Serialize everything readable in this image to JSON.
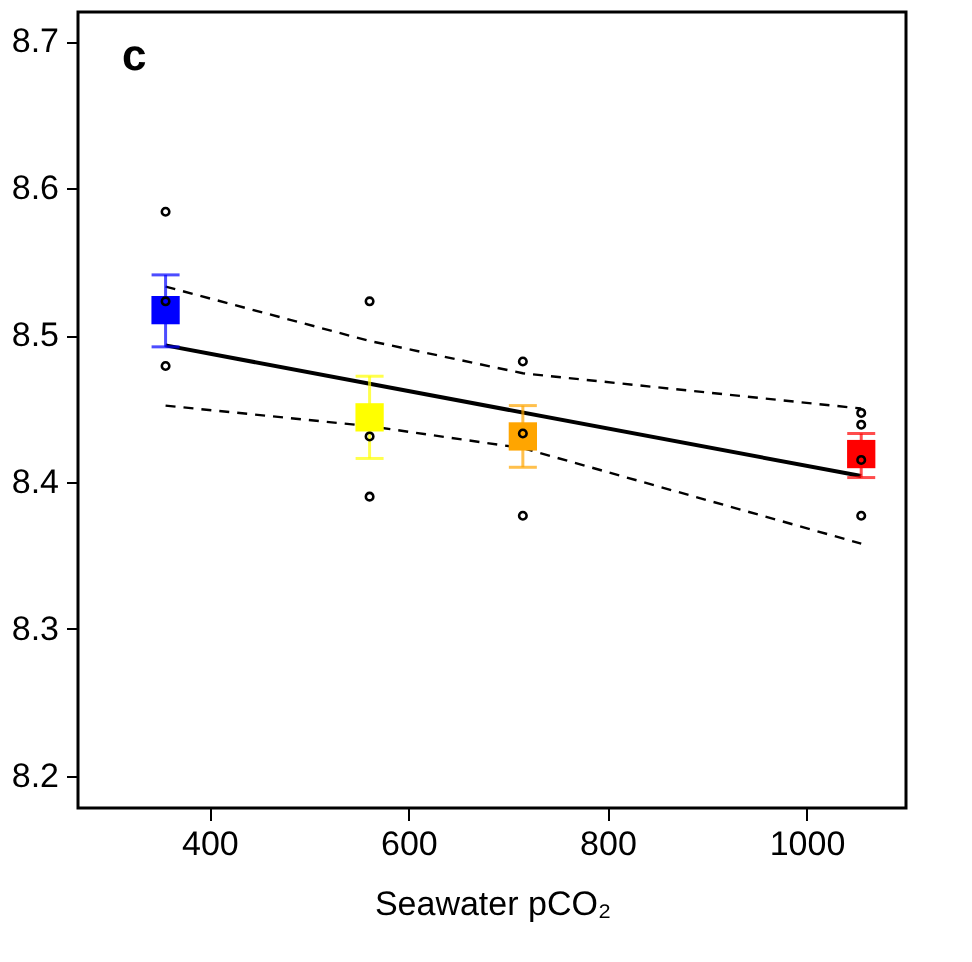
{
  "chart_data": {
    "type": "scatter",
    "xlabel": "Seawater pCO₂",
    "annotations": [
      "c"
    ],
    "xlim": [
      268,
      1100
    ],
    "ylim": [
      8.178,
      8.72
    ],
    "xticks": [
      400,
      600,
      800,
      1000
    ],
    "yticks": [
      8.2,
      8.3,
      8.4,
      8.5,
      8.6,
      8.7
    ],
    "grid": false,
    "series": [
      {
        "type": "line",
        "line_style": "dashed",
        "color": "#000000",
        "x": [
          356,
          561,
          715,
          1055
        ],
        "values": [
          8.533,
          8.496,
          8.474,
          8.45
        ]
      },
      {
        "type": "line",
        "line_style": "dashed",
        "color": "#000000",
        "x": [
          356,
          561,
          715,
          1055
        ],
        "values": [
          8.452,
          8.438,
          8.423,
          8.358
        ]
      },
      {
        "type": "line",
        "line_style": "solid",
        "color": "#000000",
        "x": [
          356,
          1055
        ],
        "values": [
          8.493,
          8.404
        ]
      },
      {
        "marker": "square",
        "x": [
          356,
          561,
          715,
          1055
        ],
        "values": [
          8.517,
          8.444,
          8.431,
          8.419
        ],
        "colors": [
          "#0000ff",
          "#ffff00",
          "#ffa500",
          "#ff0000"
        ],
        "errors": [
          [
            8.492,
            8.541
          ],
          [
            8.416,
            8.472
          ],
          [
            8.41,
            8.452
          ],
          [
            8.403,
            8.433
          ]
        ]
      },
      {
        "marker": "circle",
        "color": "#000000",
        "x": [
          356,
          356,
          356,
          561,
          561,
          561,
          715,
          715,
          715,
          1055,
          1055,
          1055,
          1055
        ],
        "values": [
          8.584,
          8.523,
          8.479,
          8.523,
          8.431,
          8.39,
          8.482,
          8.433,
          8.377,
          8.447,
          8.439,
          8.415,
          8.377
        ]
      }
    ]
  }
}
